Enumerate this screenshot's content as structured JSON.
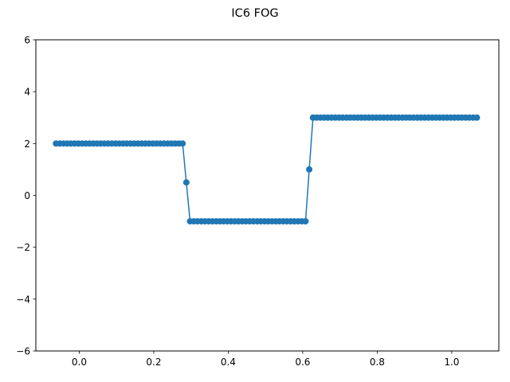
{
  "chart_data": {
    "type": "line",
    "title": "IC6 FOG",
    "xlabel": "",
    "ylabel": "",
    "xlim": [
      -0.1165,
      1.1265
    ],
    "ylim": [
      -6,
      6
    ],
    "x_ticks": [
      0.0,
      0.2,
      0.4,
      0.6,
      0.8,
      1.0
    ],
    "x_tick_labels": [
      "0.0",
      "0.2",
      "0.4",
      "0.6",
      "0.8",
      "1.0"
    ],
    "y_ticks": [
      -6,
      -4,
      -2,
      0,
      2,
      4,
      6
    ],
    "y_tick_labels": [
      "−6",
      "−4",
      "−2",
      "0",
      "2",
      "4",
      "6"
    ],
    "grid": false,
    "legend": "none",
    "series": [
      {
        "color": "#1f77b4",
        "marker": "circle",
        "x": [
          -0.0625,
          -0.0525,
          -0.0425,
          -0.0325,
          -0.0225,
          -0.0125,
          -0.0025,
          0.0075,
          0.0175,
          0.0275,
          0.0375,
          0.0475,
          0.0575,
          0.0675,
          0.0775,
          0.0875,
          0.0975,
          0.1075,
          0.1175,
          0.1275,
          0.1375,
          0.1475,
          0.1575,
          0.1675,
          0.1775,
          0.1875,
          0.1975,
          0.2075,
          0.2175,
          0.2275,
          0.2375,
          0.2475,
          0.2575,
          0.2675,
          0.2775,
          0.2875,
          0.2975,
          0.3075,
          0.3175,
          0.3275,
          0.3375,
          0.3475,
          0.3575,
          0.3675,
          0.3775,
          0.3875,
          0.3975,
          0.4075,
          0.4175,
          0.4275,
          0.4375,
          0.4475,
          0.4575,
          0.4675,
          0.4775,
          0.4875,
          0.4975,
          0.5075,
          0.5175,
          0.5275,
          0.5375,
          0.5475,
          0.5575,
          0.5675,
          0.5775,
          0.5875,
          0.5975,
          0.6075,
          0.6175,
          0.6275,
          0.6375,
          0.6475,
          0.6575,
          0.6675,
          0.6775,
          0.6875,
          0.6975,
          0.7075,
          0.7175,
          0.7275,
          0.7375,
          0.7475,
          0.7575,
          0.7675,
          0.7775,
          0.7875,
          0.7975,
          0.8075,
          0.8175,
          0.8275,
          0.8375,
          0.8475,
          0.8575,
          0.8675,
          0.8775,
          0.8875,
          0.8975,
          0.9075,
          0.9175,
          0.9275,
          0.9375,
          0.9475,
          0.9575,
          0.9675,
          0.9775,
          0.9875,
          0.9975,
          1.0075,
          1.0175,
          1.0275,
          1.0375,
          1.0475,
          1.0575,
          1.0675
        ],
        "y": [
          2,
          2,
          2,
          2,
          2,
          2,
          2,
          2,
          2,
          2,
          2,
          2,
          2,
          2,
          2,
          2,
          2,
          2,
          2,
          2,
          2,
          2,
          2,
          2,
          2,
          2,
          2,
          2,
          2,
          2,
          2,
          2,
          2,
          2,
          2,
          0.5,
          -1,
          -1,
          -1,
          -1,
          -1,
          -1,
          -1,
          -1,
          -1,
          -1,
          -1,
          -1,
          -1,
          -1,
          -1,
          -1,
          -1,
          -1,
          -1,
          -1,
          -1,
          -1,
          -1,
          -1,
          -1,
          -1,
          -1,
          -1,
          -1,
          -1,
          -1,
          -1,
          1,
          3,
          3,
          3,
          3,
          3,
          3,
          3,
          3,
          3,
          3,
          3,
          3,
          3,
          3,
          3,
          3,
          3,
          3,
          3,
          3,
          3,
          3,
          3,
          3,
          3,
          3,
          3,
          3,
          3,
          3,
          3,
          3,
          3,
          3,
          3,
          3,
          3,
          3,
          3,
          3,
          3,
          3,
          3,
          3,
          3
        ]
      }
    ]
  }
}
